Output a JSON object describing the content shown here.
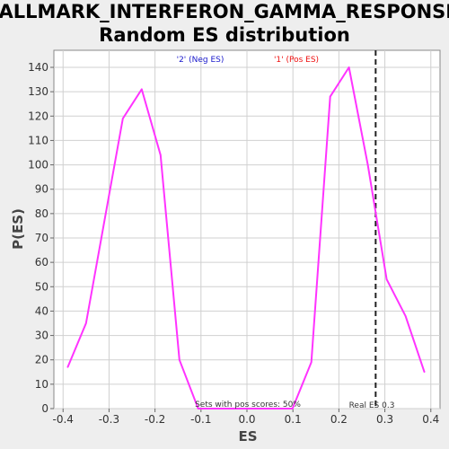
{
  "chart_data": {
    "type": "line",
    "title_line1": "HALLMARK_INTERFERON_GAMMA_RESPONSE:",
    "title_line2": "Random ES distribution",
    "xlabel": "ES",
    "ylabel": "P(ES)",
    "xlim": [
      -0.42,
      0.42
    ],
    "ylim": [
      0,
      147
    ],
    "xticks": [
      -0.4,
      -0.3,
      -0.2,
      -0.1,
      0.0,
      0.1,
      0.2,
      0.3,
      0.4
    ],
    "xtick_labels": [
      "-0.4",
      "-0.3",
      "-0.2",
      "-0.1",
      "0.0",
      "0.1",
      "0.2",
      "0.3",
      "0.4"
    ],
    "yticks": [
      0,
      10,
      20,
      30,
      40,
      50,
      60,
      70,
      80,
      90,
      100,
      110,
      120,
      130,
      140
    ],
    "ytick_labels": [
      "0",
      "10",
      "20",
      "30",
      "40",
      "50",
      "60",
      "70",
      "80",
      "90",
      "100",
      "110",
      "120",
      "130",
      "140"
    ],
    "grid": true,
    "series": [
      {
        "color": "#ff33ff",
        "x": [
          -0.39,
          -0.35,
          -0.311,
          -0.27,
          -0.229,
          -0.188,
          -0.147,
          -0.106,
          -0.065,
          -0.024,
          0.017,
          0.058,
          0.099,
          0.14,
          0.181,
          0.222,
          0.263,
          0.304,
          0.345,
          0.386
        ],
        "y": [
          17,
          35,
          76,
          119,
          131,
          104,
          20,
          0,
          0,
          0,
          0,
          0,
          0,
          19,
          128,
          140,
          100,
          53,
          38,
          15
        ]
      }
    ],
    "legend": {
      "neg_label": "'2' (Neg ES)",
      "neg_color": "#1a1acc",
      "pos_label": "'1' (Pos ES)",
      "pos_color": "#ee1111"
    },
    "real_es": {
      "value": 0.28,
      "label": "Real ES 0.3"
    },
    "annotation": "Sets with pos scores: 50%"
  }
}
